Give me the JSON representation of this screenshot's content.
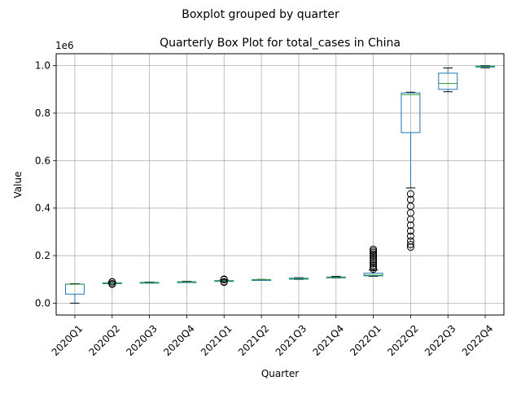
{
  "chart_data": {
    "type": "box",
    "suptitle": "Boxplot grouped by quarter",
    "title": "Quarterly Box Plot for total_cases in China",
    "xlabel": "Quarter",
    "ylabel": "Value",
    "y_offset_label": "1e6",
    "ylim": [
      -0.05,
      1.05
    ],
    "yticks": [
      0.0,
      0.2,
      0.4,
      0.6,
      0.8,
      1.0
    ],
    "ytick_labels": [
      "0.0",
      "0.2",
      "0.4",
      "0.6",
      "0.8",
      "1.0"
    ],
    "grid": true,
    "colors": {
      "box": "#1f77b4",
      "median": "#2ca02c",
      "whisker": "#000000",
      "grid": "#b0b0b0"
    },
    "categories": [
      "2020Q1",
      "2020Q2",
      "2020Q3",
      "2020Q4",
      "2021Q1",
      "2021Q2",
      "2021Q3",
      "2021Q4",
      "2022Q1",
      "2022Q2",
      "2022Q3",
      "2022Q4"
    ],
    "boxes": [
      {
        "whislo": 0.0,
        "q1": 0.038,
        "med": 0.08,
        "q3": 0.08,
        "whishi": 0.082,
        "fliers": []
      },
      {
        "whislo": 0.083,
        "q1": 0.0835,
        "med": 0.0845,
        "q3": 0.0855,
        "whishi": 0.087,
        "fliers": [
          0.08,
          0.082,
          0.089,
          0.09
        ]
      },
      {
        "whislo": 0.085,
        "q1": 0.0855,
        "med": 0.0865,
        "q3": 0.0875,
        "whishi": 0.089,
        "fliers": []
      },
      {
        "whislo": 0.0875,
        "q1": 0.088,
        "med": 0.089,
        "q3": 0.09,
        "whishi": 0.092,
        "fliers": []
      },
      {
        "whislo": 0.093,
        "q1": 0.0935,
        "med": 0.094,
        "q3": 0.095,
        "whishi": 0.097,
        "fliers": [
          0.088,
          0.09,
          0.099,
          0.101
        ]
      },
      {
        "whislo": 0.097,
        "q1": 0.0975,
        "med": 0.098,
        "q3": 0.099,
        "whishi": 0.1,
        "fliers": []
      },
      {
        "whislo": 0.1,
        "q1": 0.101,
        "med": 0.103,
        "q3": 0.105,
        "whishi": 0.107,
        "fliers": []
      },
      {
        "whislo": 0.106,
        "q1": 0.1065,
        "med": 0.108,
        "q3": 0.11,
        "whishi": 0.113,
        "fliers": []
      },
      {
        "whislo": 0.113,
        "q1": 0.115,
        "med": 0.118,
        "q3": 0.126,
        "whishi": 0.14,
        "fliers": [
          0.143,
          0.15,
          0.158,
          0.166,
          0.174,
          0.182,
          0.19,
          0.198,
          0.206,
          0.213,
          0.22,
          0.227
        ]
      },
      {
        "whislo": 0.485,
        "q1": 0.718,
        "med": 0.878,
        "q3": 0.885,
        "whishi": 0.888,
        "fliers": [
          0.236,
          0.247,
          0.262,
          0.282,
          0.304,
          0.328,
          0.353,
          0.38,
          0.408,
          0.436,
          0.46
        ]
      },
      {
        "whislo": 0.89,
        "q1": 0.9,
        "med": 0.925,
        "q3": 0.968,
        "whishi": 0.99,
        "fliers": []
      },
      {
        "whislo": 0.991,
        "q1": 0.994,
        "med": 0.997,
        "q3": 0.998,
        "whishi": 1.0,
        "fliers": []
      }
    ]
  }
}
